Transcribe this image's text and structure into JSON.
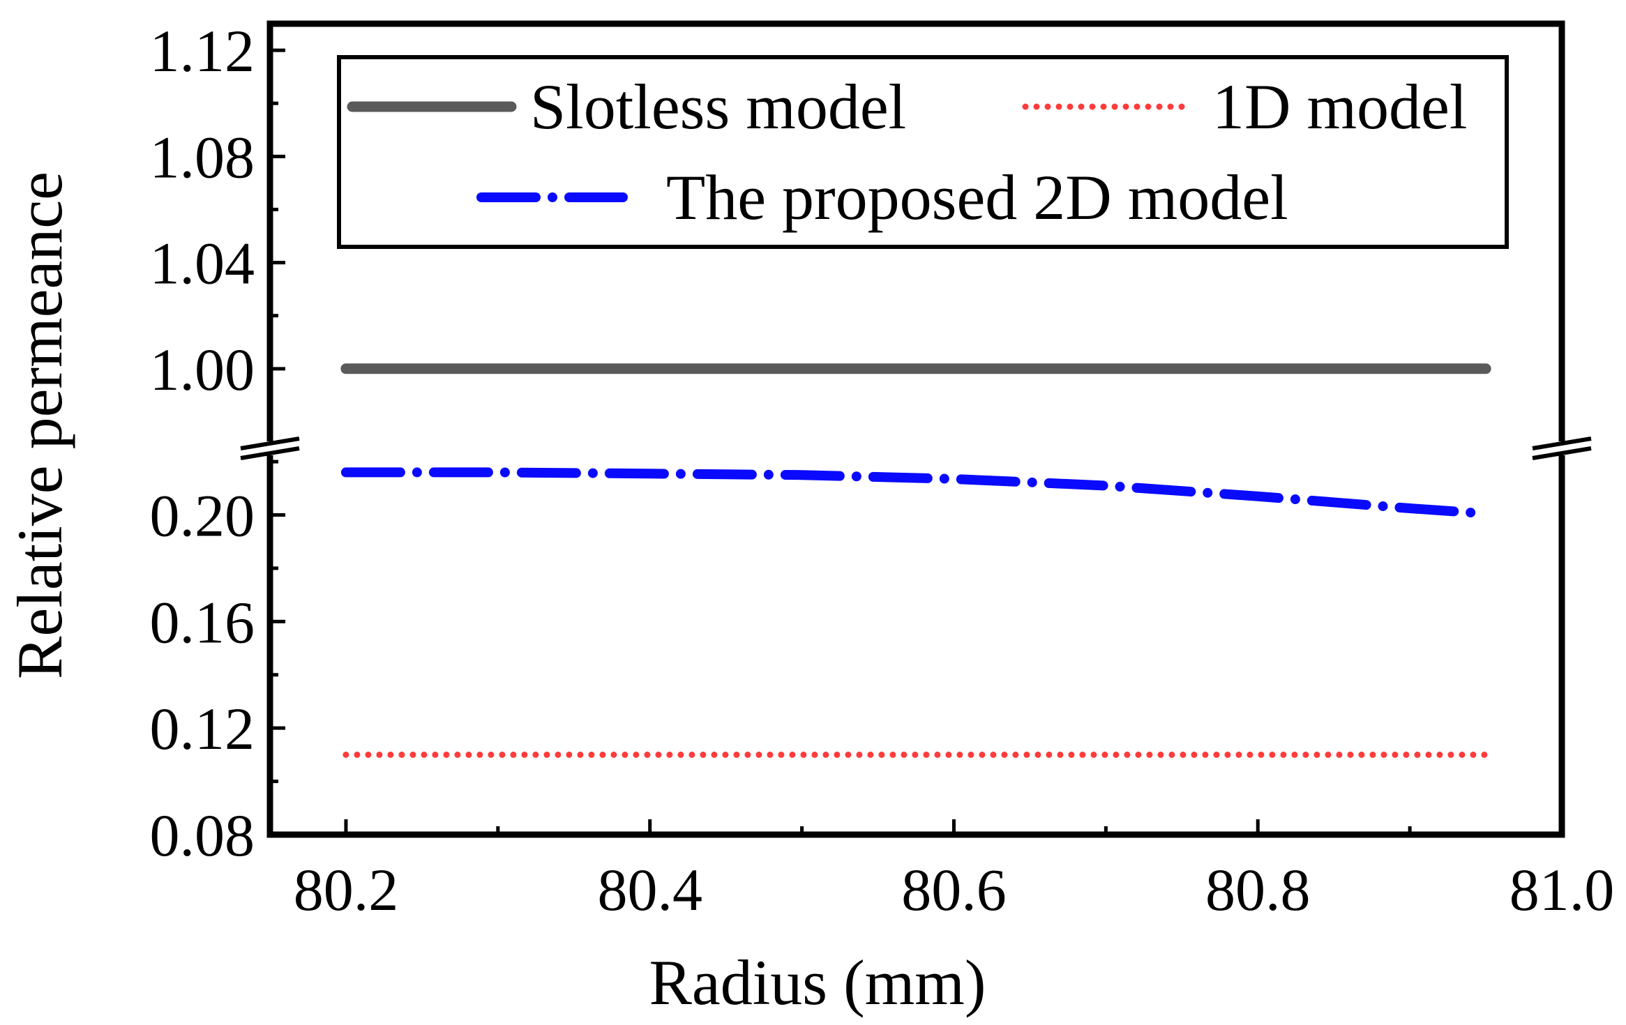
{
  "chart_data": {
    "type": "line",
    "title": "",
    "xlabel": "Radius (mm)",
    "ylabel": "Relative permeance",
    "xlim": [
      80.15,
      81.0
    ],
    "x_ticks": [
      80.2,
      80.4,
      80.6,
      80.8,
      81.0
    ],
    "x_tick_labels": [
      "80.2",
      "80.4",
      "80.6",
      "80.8",
      "81.0"
    ],
    "y_axis_broken": true,
    "y_segments": [
      {
        "name": "upper",
        "ylim": [
          0.97,
          1.13
        ],
        "ticks": [
          1.0,
          1.04,
          1.08,
          1.12
        ],
        "tick_labels": [
          "1.00",
          "1.04",
          "1.08",
          "1.12"
        ]
      },
      {
        "name": "lower",
        "ylim": [
          0.08,
          0.225
        ],
        "ticks": [
          0.08,
          0.12,
          0.16,
          0.2
        ],
        "tick_labels": [
          "0.08",
          "0.12",
          "0.16",
          "0.20"
        ]
      }
    ],
    "legend_position": "top",
    "series": [
      {
        "name": "Slotless model",
        "style": "solid",
        "color": "#5a5a5a",
        "x": [
          80.2,
          80.3,
          80.4,
          80.5,
          80.6,
          80.7,
          80.8,
          80.9,
          80.95
        ],
        "y": [
          1.0,
          1.0,
          1.0,
          1.0,
          1.0,
          1.0,
          1.0,
          1.0,
          1.0
        ]
      },
      {
        "name": "1D model",
        "style": "dotted",
        "color": "#ff3b3b",
        "x": [
          80.2,
          80.3,
          80.4,
          80.5,
          80.6,
          80.7,
          80.8,
          80.9,
          80.95
        ],
        "y": [
          0.11,
          0.11,
          0.11,
          0.11,
          0.11,
          0.11,
          0.11,
          0.11,
          0.11
        ]
      },
      {
        "name": "The proposed 2D model",
        "style": "dashdot",
        "color": "#0a0aff",
        "x": [
          80.2,
          80.3,
          80.4,
          80.5,
          80.6,
          80.7,
          80.8,
          80.9,
          80.95
        ],
        "y": [
          0.216,
          0.216,
          0.2155,
          0.215,
          0.2135,
          0.211,
          0.207,
          0.2025,
          0.2005
        ]
      }
    ]
  }
}
